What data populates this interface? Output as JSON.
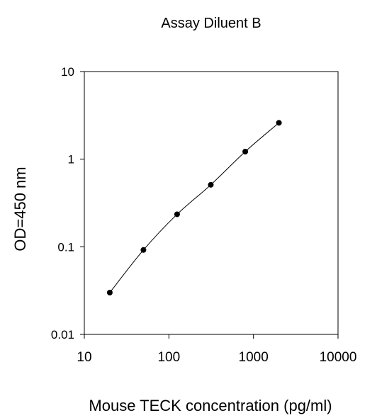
{
  "chart_data": {
    "type": "scatter",
    "title": "Assay Diluent B",
    "xlabel": "Mouse TECK concentration (pg/ml)",
    "ylabel": "OD=450 nm",
    "x_scale": "log",
    "y_scale": "log",
    "xlim": [
      10,
      10000
    ],
    "ylim": [
      0.01,
      10
    ],
    "x_ticks": [
      "10",
      "100",
      "1000",
      "10000"
    ],
    "y_ticks": [
      "0.01",
      "0.1",
      "1",
      "10"
    ],
    "grid": false,
    "legend": "none",
    "series": [
      {
        "x": [
          20,
          50,
          125,
          313,
          800,
          2000
        ],
        "y": [
          0.03,
          0.092,
          0.235,
          0.51,
          1.22,
          2.6
        ]
      }
    ],
    "colors": {
      "line": "#000000",
      "marker": "#000000",
      "axis": "#000000"
    }
  }
}
